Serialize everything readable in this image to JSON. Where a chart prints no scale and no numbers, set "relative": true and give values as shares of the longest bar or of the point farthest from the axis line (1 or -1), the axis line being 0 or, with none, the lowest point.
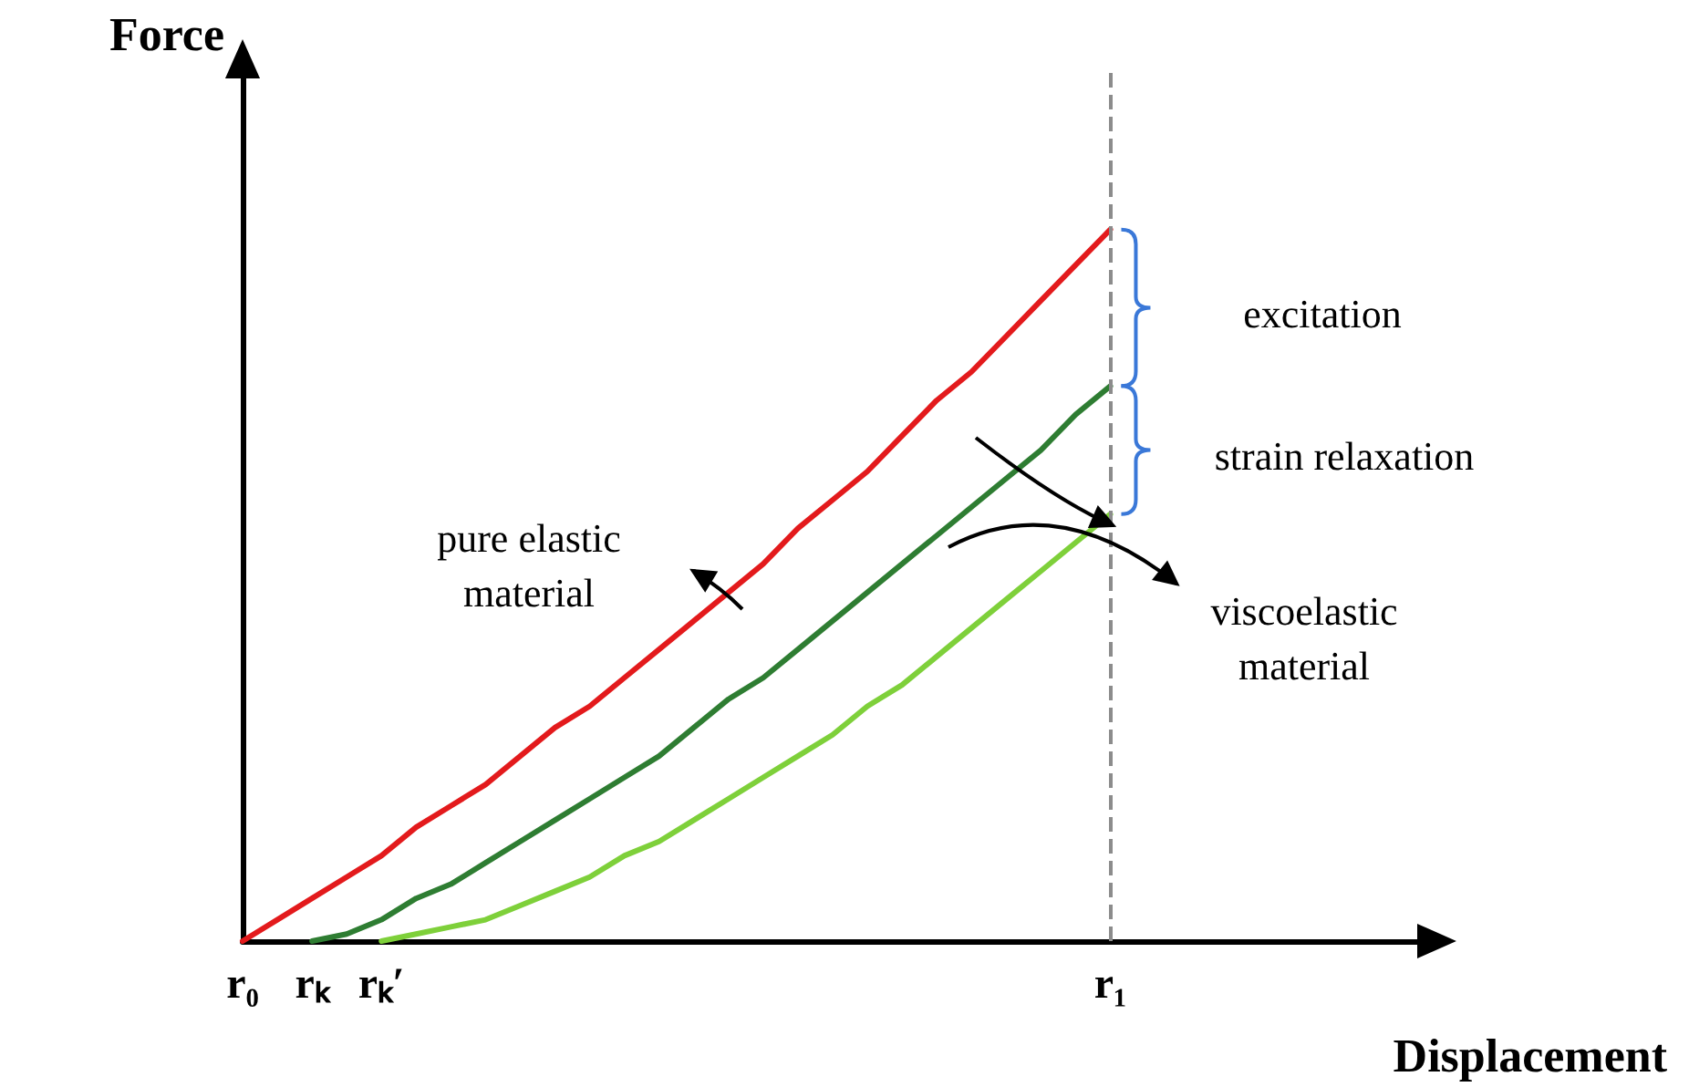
{
  "chart_data": {
    "type": "line",
    "xlabel": "Displacement",
    "ylabel": "Force",
    "relative": true,
    "categories": [
      "r₀",
      null,
      "rₖ",
      null,
      "rₖ′",
      null,
      null,
      null,
      null,
      null,
      null,
      null,
      null,
      null,
      null,
      null,
      null,
      null,
      null,
      null,
      null,
      null,
      null,
      null,
      null,
      "r₁",
      null,
      null,
      null,
      null,
      null,
      null,
      null,
      null,
      null
    ],
    "grid": false,
    "marker": "none",
    "line_style": "solid",
    "series": [
      {
        "color": "#e31a1c",
        "values": [
          0,
          0.03,
          0.06,
          0.09,
          0.12,
          0.16,
          0.19,
          0.22,
          0.26,
          0.3,
          0.33,
          0.37,
          0.41,
          0.45,
          0.49,
          0.53,
          0.58,
          0.62,
          0.66,
          0.71,
          0.76,
          0.8,
          0.85,
          0.9,
          0.95,
          1,
          null,
          null,
          null,
          null,
          null,
          null,
          null,
          null,
          null
        ]
      },
      {
        "color": "#2e7d32",
        "values": [
          null,
          null,
          0,
          0.01,
          0.03,
          0.06,
          0.08,
          0.11,
          0.14,
          0.17,
          0.2,
          0.23,
          0.26,
          0.3,
          0.34,
          0.37,
          0.41,
          0.45,
          0.49,
          0.53,
          0.57,
          0.61,
          0.65,
          0.69,
          0.74,
          0.78,
          null,
          null,
          null,
          null,
          null,
          null,
          null,
          null,
          null
        ]
      },
      {
        "color": "#7ed03a",
        "values": [
          null,
          null,
          null,
          null,
          0,
          0.01,
          0.02,
          0.03,
          0.05,
          0.07,
          0.09,
          0.12,
          0.14,
          0.17,
          0.2,
          0.23,
          0.26,
          0.29,
          0.33,
          0.36,
          0.4,
          0.44,
          0.48,
          0.52,
          0.56,
          0.6,
          null,
          null,
          null,
          null,
          null,
          null,
          null,
          null,
          null
        ]
      }
    ],
    "ref_lines": [
      {
        "axis": "x",
        "value": "r₁",
        "color": "#8c8c8c",
        "line_style": "dashed"
      }
    ],
    "annotations": [
      "pure elastic\nmaterial",
      "excitation",
      "strain relaxation",
      "viscoelastic\nmaterial"
    ]
  }
}
